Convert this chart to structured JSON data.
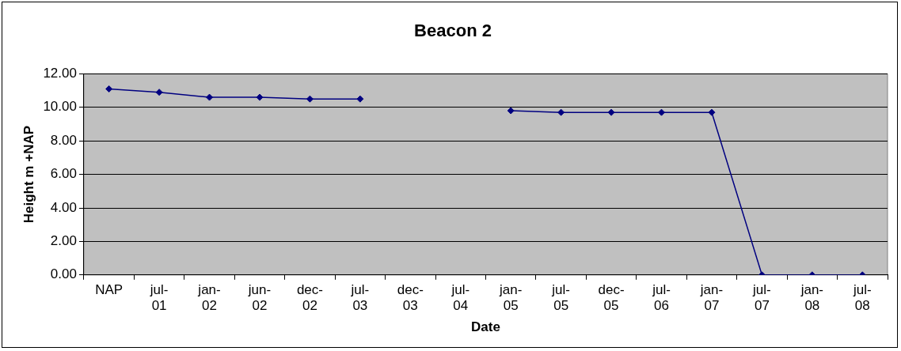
{
  "chart_data": {
    "type": "line",
    "title": "Beacon 2",
    "xlabel": "Date",
    "ylabel": "Height m +NAP",
    "categories": [
      "NAP",
      "jul-01",
      "jan-02",
      "jun-02",
      "dec-02",
      "jul-03",
      "dec-03",
      "jul-04",
      "jan-05",
      "jul-05",
      "dec-05",
      "jul-06",
      "jan-07",
      "jul-07",
      "jan-08",
      "jul-08"
    ],
    "series": [
      {
        "color": "#000080",
        "values": [
          11.1,
          10.9,
          10.6,
          10.6,
          10.5,
          10.5,
          null,
          null,
          9.8,
          9.7,
          9.7,
          9.7,
          9.7,
          0,
          0,
          0
        ]
      }
    ],
    "ylim": [
      0,
      12
    ],
    "yticks": [
      {
        "value": 0,
        "label": "0.00"
      },
      {
        "value": 2,
        "label": "2.00"
      },
      {
        "value": 4,
        "label": "4.00"
      },
      {
        "value": 6,
        "label": "6.00"
      },
      {
        "value": 8,
        "label": "8.00"
      },
      {
        "value": 10,
        "label": "10.00"
      },
      {
        "value": 12,
        "label": "12.00"
      }
    ],
    "grid": "y",
    "legend": false,
    "marker": "diamond",
    "line_style": "solid"
  }
}
